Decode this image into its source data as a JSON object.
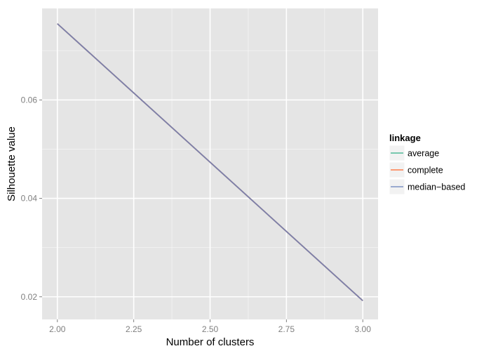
{
  "chart_data": {
    "type": "line",
    "xlabel": "Number of clusters",
    "ylabel": "Silhouette value",
    "xlim": [
      1.95,
      3.05
    ],
    "ylim": [
      0.0154,
      0.0786
    ],
    "x_ticks": [
      2.0,
      2.25,
      2.5,
      2.75,
      3.0
    ],
    "x_tick_labels": [
      "2.00",
      "2.25",
      "2.50",
      "2.75",
      "3.00"
    ],
    "y_ticks": [
      0.02,
      0.04,
      0.06
    ],
    "y_tick_labels": [
      "0.02",
      "0.04",
      "0.06"
    ],
    "grid": true,
    "legend": {
      "title": "linkage",
      "placement": "right"
    },
    "series": [
      {
        "name": "average",
        "color": "#66c2a5",
        "x": [
          2,
          3
        ],
        "y": [
          0.0755,
          0.0192
        ]
      },
      {
        "name": "complete",
        "color": "#fc8d62",
        "x": [
          2,
          3
        ],
        "y": [
          0.0755,
          0.0192
        ]
      },
      {
        "name": "median−based",
        "color": "#8da0cb",
        "x": [
          2,
          3
        ],
        "y": [
          0.0755,
          0.0192
        ]
      }
    ],
    "line_color_overlap": "#7b7fac",
    "panel_background": "#e5e5e5",
    "grid_color": "#ffffff"
  }
}
